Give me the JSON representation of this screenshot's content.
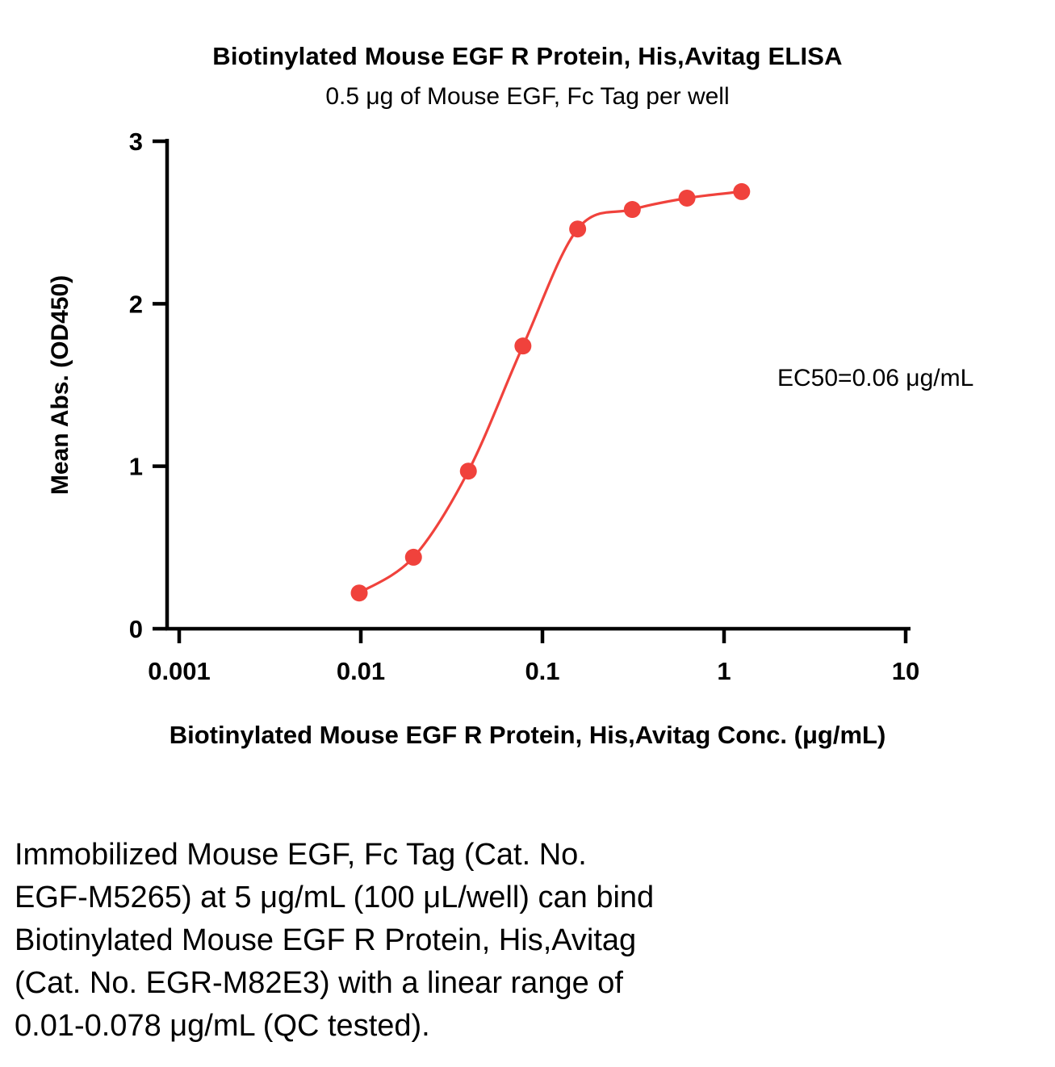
{
  "chart_data": {
    "type": "scatter",
    "title": "Biotinylated Mouse EGF R Protein, His,Avitag ELISA",
    "subtitle": "0.5 μg of Mouse EGF, Fc Tag per well",
    "xlabel": "Biotinylated Mouse EGF R Protein, His,Avitag Conc. (μg/mL)",
    "ylabel": "Mean Abs. (OD450)",
    "x_scale": "log10",
    "xlim": [
      0.001,
      10
    ],
    "ylim": [
      0,
      3
    ],
    "x_ticks": [
      0.001,
      0.01,
      0.1,
      1,
      10
    ],
    "x_tick_labels": [
      "0.001",
      "0.01",
      "0.1",
      "1",
      "10"
    ],
    "y_ticks": [
      0,
      1,
      2,
      3
    ],
    "y_tick_labels": [
      "0",
      "1",
      "2",
      "3"
    ],
    "grid": false,
    "legend": "none",
    "annotation": "EC50=0.06 μg/mL",
    "ec50_value_ug_per_ml": 0.06,
    "series": [
      {
        "name": "Biotinylated Mouse EGF R Protein, His,Avitag",
        "color": "#F0423C",
        "marker": "circle",
        "fit": "sigmoidal-4PL",
        "x": [
          0.0098,
          0.0195,
          0.0391,
          0.0781,
          0.1563,
          0.3125,
          0.625,
          1.25
        ],
        "y": [
          0.22,
          0.44,
          0.97,
          1.74,
          2.46,
          2.58,
          2.65,
          2.69
        ]
      }
    ]
  },
  "caption": {
    "lines": [
      "Immobilized Mouse EGF, Fc Tag (Cat. No.",
      "EGF-M5265) at 5 μg/mL (100 μL/well) can bind",
      "Biotinylated Mouse EGF R Protein, His,Avitag",
      "(Cat. No. EGR-M82E3) with a linear range of",
      "0.01-0.078 μg/mL (QC tested)."
    ]
  }
}
